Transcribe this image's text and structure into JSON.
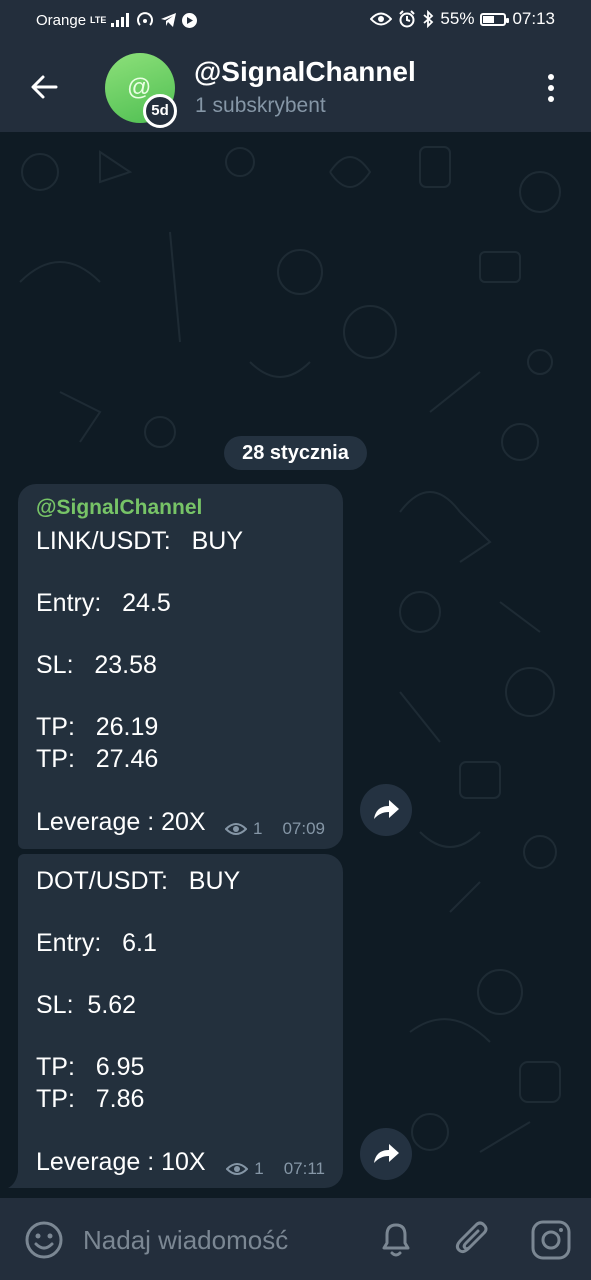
{
  "status_bar": {
    "carrier": "Orange",
    "network": "LTE",
    "battery": "55%",
    "battery_level": 0.55,
    "time": "07:13",
    "icons": [
      "signal-icon",
      "hotspot-icon",
      "telegram-icon",
      "media-icon",
      "eye-icon",
      "alarm-icon",
      "bluetooth-icon",
      "battery-icon"
    ]
  },
  "header": {
    "title": "@SignalChannel",
    "subtitle": "1 subskrybent",
    "avatar_glyph": "@",
    "timer_badge": "5d"
  },
  "chat": {
    "date_label": "28 stycznia",
    "messages": [
      {
        "sender": "@SignalChannel",
        "lines": [
          "LINK/USDT:   BUY",
          "Entry:   24.5",
          "SL:   23.58",
          "TP:   26.19",
          "TP:   27.46",
          "Leverage : 20X"
        ],
        "views": "1",
        "time": "07:09"
      },
      {
        "lines": [
          "DOT/USDT:   BUY",
          "Entry:   6.1",
          "SL:  5.62",
          "TP:   6.95",
          "TP:   7.86",
          "Leverage : 10X"
        ],
        "views": "1",
        "time": "07:11"
      }
    ]
  },
  "input": {
    "placeholder": "Nadaj wiadomość"
  },
  "colors": {
    "header_bg": "#232e3c",
    "chat_bg": "#0f1b24",
    "bubble_bg": "#23303d",
    "accent_green": "#77c467",
    "muted_text": "#8596a6"
  }
}
